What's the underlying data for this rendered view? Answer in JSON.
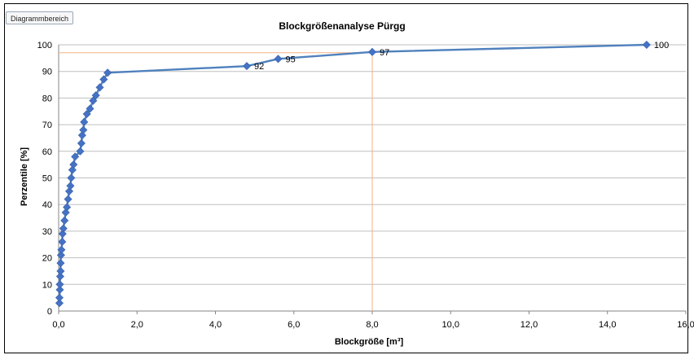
{
  "tab_label": "Diagrammbereich",
  "colors": {
    "series": "#4f81bd",
    "marker": "#4572c4",
    "reference": "#f4b183",
    "grid": "#bfbfbf",
    "axis": "#868686"
  },
  "chart_data": {
    "type": "scatter",
    "title": "Blockgrößenanalyse Pürgg",
    "xlabel": "Blockgröße [m³]",
    "ylabel": "Perzentile [%]",
    "xlim": [
      0,
      16
    ],
    "ylim": [
      0,
      100
    ],
    "grid": "horizontal",
    "legend": "none",
    "x_ticks": [
      "0,0",
      "2,0",
      "4,0",
      "6,0",
      "8,0",
      "10,0",
      "12,0",
      "14,0",
      "16,0"
    ],
    "y_ticks": [
      "0",
      "10",
      "20",
      "30",
      "40",
      "50",
      "60",
      "70",
      "80",
      "90",
      "100"
    ],
    "series": [
      {
        "x": [
          0.02,
          0.02,
          0.03,
          0.03,
          0.04,
          0.05,
          0.05,
          0.06,
          0.07,
          0.09,
          0.1,
          0.12,
          0.15,
          0.18,
          0.21,
          0.24,
          0.27,
          0.3,
          0.32,
          0.35,
          0.38,
          0.42,
          0.55,
          0.58,
          0.6,
          0.63,
          0.65,
          0.72,
          0.8,
          0.88,
          0.95,
          1.05,
          1.15,
          1.25,
          4.8,
          5.6,
          8.0,
          15.0
        ],
        "y": [
          3,
          5,
          8,
          10,
          13,
          15,
          18,
          21,
          23,
          26,
          29,
          31,
          34,
          37,
          39,
          42,
          45,
          47,
          50,
          53,
          55,
          58,
          60,
          63,
          66,
          68,
          71,
          74,
          76,
          79,
          81,
          84,
          87,
          89.5,
          92,
          94.7,
          97.3,
          100
        ],
        "labels": [
          {
            "index": 34,
            "text": "92"
          },
          {
            "index": 35,
            "text": "95"
          },
          {
            "index": 36,
            "text": "97"
          },
          {
            "index": 37,
            "text": "100"
          }
        ]
      }
    ],
    "reference_lines": [
      {
        "x": 8.0,
        "y": 97
      }
    ]
  }
}
